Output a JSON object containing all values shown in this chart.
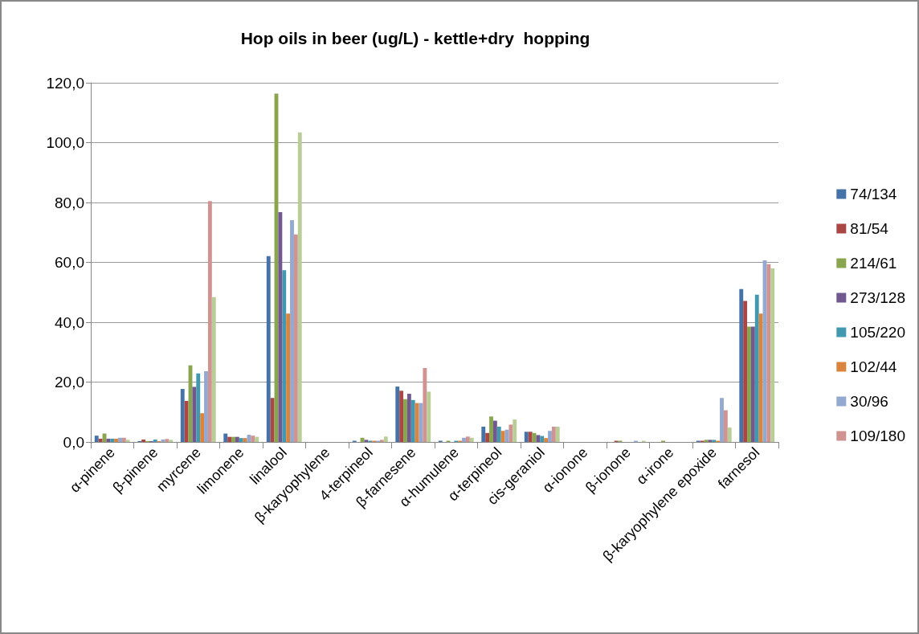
{
  "chart_data": {
    "type": "bar",
    "title": "Hop oils in beer (ug/L) - kettle+dry  hopping",
    "categories": [
      "α-pinene",
      "β-pinene",
      "myrcene",
      "limonene",
      "linalool",
      "β-karyophylene",
      "4-terpineol",
      "β-farnesene",
      "α-humulene",
      "α-terpineol",
      "cis-geraniol",
      "α-ionone",
      "β-ionone",
      "α-irone",
      "β-karyophylene epoxide",
      "farnesol"
    ],
    "series": [
      {
        "name": "74/134",
        "color": "#4572a7",
        "values": [
          2.1,
          0.3,
          17.7,
          2.8,
          62.1,
          0,
          0.4,
          18.5,
          0.4,
          5.1,
          3.4,
          0,
          0,
          0,
          0.4,
          51.1
        ]
      },
      {
        "name": "81/54",
        "color": "#aa4643",
        "values": [
          1.1,
          0.8,
          13.7,
          1.7,
          14.7,
          0,
          0,
          17.1,
          0,
          3.0,
          3.4,
          0,
          0.4,
          0,
          0.4,
          47.1
        ]
      },
      {
        "name": "214/61",
        "color": "#89a54e",
        "values": [
          2.8,
          0.3,
          25.6,
          1.7,
          116.4,
          0,
          1.4,
          14.3,
          0.4,
          8.5,
          3.0,
          0,
          0.4,
          0.4,
          0.7,
          38.5
        ]
      },
      {
        "name": "273/128",
        "color": "#71588f",
        "values": [
          1.1,
          0.3,
          18.4,
          1.7,
          76.8,
          0,
          0.7,
          16.1,
          0,
          7.1,
          2.3,
          0,
          0,
          0,
          0.7,
          38.5
        ]
      },
      {
        "name": "105/220",
        "color": "#4198af",
        "values": [
          1.1,
          0.8,
          22.9,
          1.3,
          57.4,
          0,
          0.4,
          14.0,
          0.4,
          5.1,
          2.0,
          0,
          0,
          0,
          0.7,
          49.2
        ]
      },
      {
        "name": "102/44",
        "color": "#db843d",
        "values": [
          1.1,
          0.3,
          9.6,
          1.3,
          42.9,
          0,
          0.4,
          13.0,
          0.4,
          3.7,
          1.3,
          0,
          0,
          0,
          0.4,
          42.9
        ]
      },
      {
        "name": "30/96",
        "color": "#93a9cf",
        "values": [
          1.4,
          0.8,
          23.6,
          2.4,
          74.1,
          0,
          0.4,
          13.0,
          1.4,
          4.1,
          3.7,
          0,
          0.4,
          0,
          14.7,
          60.7
        ]
      },
      {
        "name": "109/180",
        "color": "#d19392",
        "values": [
          1.4,
          1.0,
          80.5,
          2.1,
          69.3,
          0,
          0.7,
          24.7,
          1.8,
          5.8,
          5.1,
          0,
          0,
          0,
          10.6,
          59.4
        ]
      },
      {
        "color": "#b9cd96",
        "values": [
          0.7,
          0.7,
          48.4,
          1.7,
          103.4,
          0,
          1.8,
          16.8,
          1.4,
          7.5,
          5.1,
          0,
          0.4,
          0,
          4.8,
          58.0
        ]
      }
    ],
    "ylim": [
      0,
      120
    ],
    "yticks": [
      {
        "value": 0,
        "label": "0,0"
      },
      {
        "value": 20,
        "label": "20,0"
      },
      {
        "value": 40,
        "label": "40,0"
      },
      {
        "value": 60,
        "label": "60,0"
      },
      {
        "value": 80,
        "label": "80,0"
      },
      {
        "value": 100,
        "label": "100,0"
      },
      {
        "value": 120,
        "label": "120,0"
      }
    ],
    "grid": "y",
    "legend": "right"
  }
}
